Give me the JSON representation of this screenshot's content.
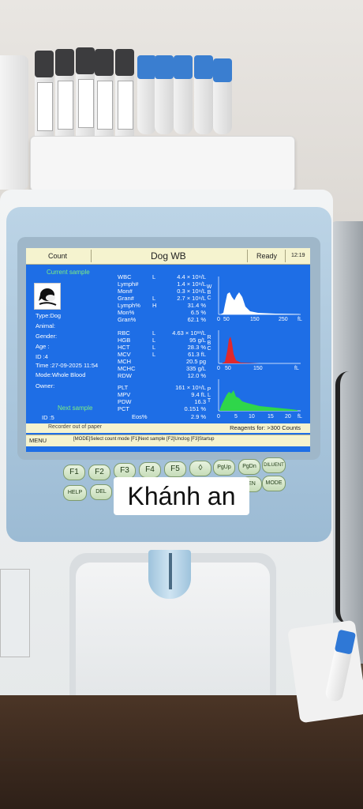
{
  "screen": {
    "mode_label": "Count",
    "title": "Dog WB",
    "status": "Ready",
    "clock": "12:19",
    "current_sample_label": "Current sample",
    "next_sample_label": "Next sample",
    "patient": {
      "type": "Type:Dog",
      "animal": "Animal:",
      "gender": "Gender:",
      "age": "Age  :",
      "id": "ID    :4",
      "time": "Time :27-09-2025 11:54",
      "mode": "Mode:Whole Blood",
      "owner": "Owner:",
      "next_id": "ID    :5"
    },
    "params": [
      {
        "name": "WBC",
        "flag": "L",
        "value": "4.4 × 10⁹/L"
      },
      {
        "name": "Lymph#",
        "flag": "",
        "value": "1.4 × 10⁹/L"
      },
      {
        "name": "Mon#",
        "flag": "",
        "value": "0.3 × 10⁹/L"
      },
      {
        "name": "Gran#",
        "flag": "L",
        "value": "2.7 × 10⁹/L"
      },
      {
        "name": "Lymph%",
        "flag": "H",
        "value": "31.4 %"
      },
      {
        "name": "Mon%",
        "flag": "",
        "value": "6.5 %"
      },
      {
        "name": "Gran%",
        "flag": "",
        "value": "62.1 %"
      },
      {
        "name": "RBC",
        "flag": "L",
        "value": "4.63 × 10¹²/L"
      },
      {
        "name": "HGB",
        "flag": "L",
        "value": "95 g/L"
      },
      {
        "name": "HCT",
        "flag": "L",
        "value": "28.3 %"
      },
      {
        "name": "MCV",
        "flag": "L",
        "value": "61.3 fL"
      },
      {
        "name": "MCH",
        "flag": "",
        "value": "20.5 pg"
      },
      {
        "name": "MCHC",
        "flag": "",
        "value": "335 g/L"
      },
      {
        "name": "RDW",
        "flag": "",
        "value": "12.0 %"
      },
      {
        "name": "PLT",
        "flag": "",
        "value": "161 × 10⁹/L"
      },
      {
        "name": "MPV",
        "flag": "",
        "value": "9.4 fL"
      },
      {
        "name": "PDW",
        "flag": "",
        "value": "16.3"
      },
      {
        "name": "PCT",
        "flag": "",
        "value": "0.151 %"
      },
      {
        "name": "Eos%",
        "flag": "",
        "value": "2.9 %"
      }
    ],
    "histograms": [
      {
        "side": "WBC",
        "ticks": [
          "0",
          "50",
          "150",
          "250"
        ],
        "unit": "fL",
        "color": "#ffffff"
      },
      {
        "side": "RBC",
        "ticks": [
          "0",
          "50",
          "150"
        ],
        "unit": "fL",
        "color": "#e0282c"
      },
      {
        "side": "PLT",
        "ticks": [
          "0",
          "5",
          "10",
          "15",
          "20"
        ],
        "unit": "fL",
        "color": "#2fd64a"
      }
    ],
    "recorder_msg": "Recorder out of paper",
    "reagents": "Reagents for: >300 Counts",
    "menu_label": "MENU",
    "menu_hint": "[MODE]Select count mode [F1]Next sample [F2]Unclog [F3]Startup"
  },
  "keypad": {
    "row1": [
      "F1",
      "F2",
      "F3",
      "F4",
      "F5",
      "◊",
      "PgUp",
      "PgDn",
      "DILUENT"
    ],
    "row2_left": [
      "HELP",
      "DEL"
    ],
    "row2_right": [
      "EN",
      "MODE"
    ]
  },
  "caption": "Khánh an",
  "colors": {
    "screen_bg": "#1e6ee6",
    "header_bg": "#f5f3cf",
    "bezel": "#a9c4da"
  }
}
